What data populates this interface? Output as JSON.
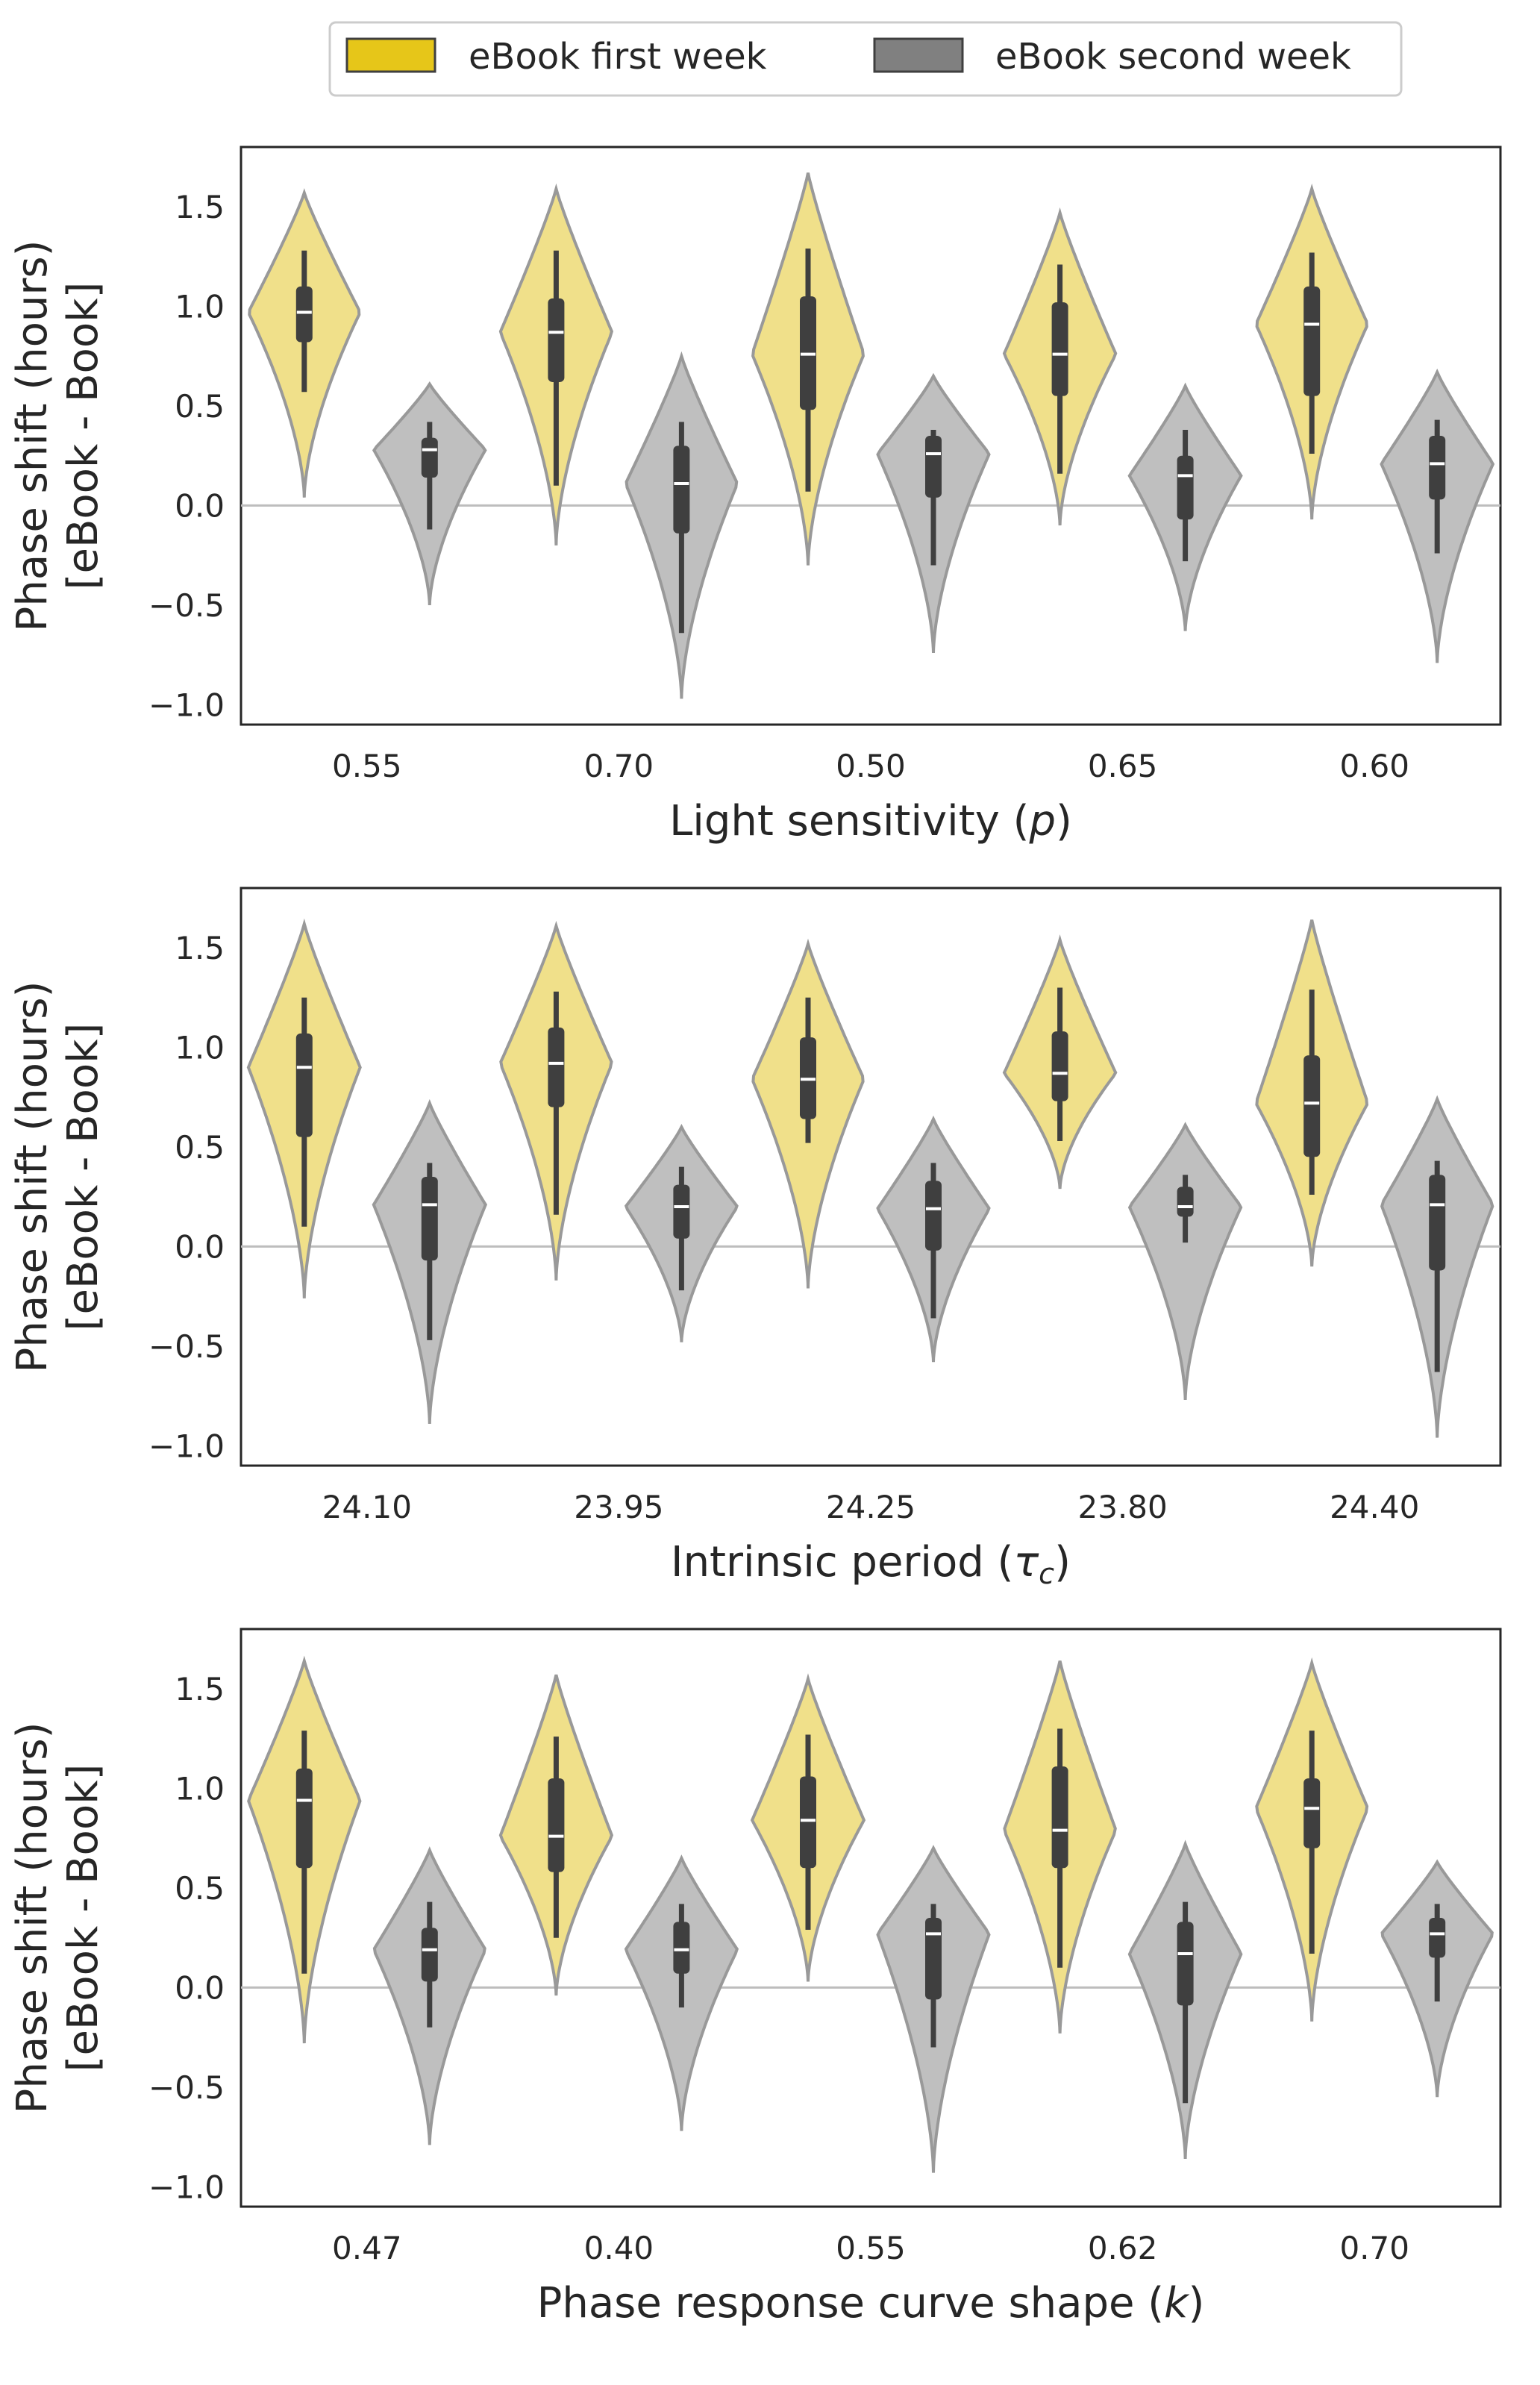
{
  "legend": {
    "items": [
      {
        "label": "eBook first week",
        "color": "#e6c619"
      },
      {
        "label": "eBook second week",
        "color": "#808080"
      }
    ],
    "placement": "top-center"
  },
  "chart_data": [
    {
      "type": "violin",
      "xlabel": "Light sensitivity (p)",
      "ylabel": [
        "Phase shift (hours)",
        "[eBook - Book]"
      ],
      "ylim": [
        -1.1,
        1.8
      ],
      "yticks": [
        -1.0,
        -0.5,
        0.0,
        0.5,
        1.0,
        1.5
      ],
      "ytick_labels": [
        "−1.0",
        "−0.5",
        "0.0",
        "0.5",
        "1.0",
        "1.5"
      ],
      "reference_line": 0.0,
      "categories": [
        "0.55",
        "0.70",
        "0.50",
        "0.65",
        "0.60"
      ],
      "series": [
        {
          "name": "eBook first week",
          "color": "#f0e08a",
          "min": [
            0.04,
            -0.2,
            -0.3,
            -0.1,
            -0.07
          ],
          "max": [
            1.57,
            1.59,
            1.67,
            1.47,
            1.59
          ],
          "q1": [
            0.82,
            0.62,
            0.48,
            0.55,
            0.55
          ],
          "median": [
            0.97,
            0.87,
            0.76,
            0.76,
            0.91
          ],
          "q3": [
            1.1,
            1.04,
            1.05,
            1.02,
            1.1
          ],
          "whisker_low": [
            0.57,
            0.1,
            0.07,
            0.16,
            0.26
          ],
          "whisker_high": [
            1.28,
            1.28,
            1.29,
            1.21,
            1.27
          ]
        },
        {
          "name": "eBook second week",
          "color": "#bfbfbf",
          "min": [
            -0.5,
            -0.97,
            -0.74,
            -0.63,
            -0.79
          ],
          "max": [
            0.61,
            0.75,
            0.65,
            0.6,
            0.67
          ],
          "q1": [
            0.14,
            -0.14,
            0.04,
            -0.07,
            0.03
          ],
          "median": [
            0.28,
            0.11,
            0.26,
            0.15,
            0.21
          ],
          "q3": [
            0.34,
            0.3,
            0.35,
            0.25,
            0.35
          ],
          "whisker_low": [
            -0.12,
            -0.64,
            -0.3,
            -0.28,
            -0.24
          ],
          "whisker_high": [
            0.42,
            0.42,
            0.38,
            0.38,
            0.43
          ]
        }
      ]
    },
    {
      "type": "violin",
      "xlabel": "Intrinsic period (τc)",
      "ylabel": [
        "Phase shift (hours)",
        "[eBook - Book]"
      ],
      "ylim": [
        -1.1,
        1.8
      ],
      "yticks": [
        -1.0,
        -0.5,
        0.0,
        0.5,
        1.0,
        1.5
      ],
      "ytick_labels": [
        "−1.0",
        "−0.5",
        "0.0",
        "0.5",
        "1.0",
        "1.5"
      ],
      "reference_line": 0.0,
      "categories": [
        "24.10",
        "23.95",
        "24.25",
        "23.80",
        "24.40"
      ],
      "series": [
        {
          "name": "eBook first week",
          "color": "#f0e08a",
          "min": [
            -0.26,
            -0.17,
            -0.21,
            0.29,
            -0.1
          ],
          "max": [
            1.62,
            1.61,
            1.52,
            1.54,
            1.64
          ],
          "q1": [
            0.55,
            0.7,
            0.64,
            0.73,
            0.45
          ],
          "median": [
            0.9,
            0.92,
            0.84,
            0.87,
            0.72
          ],
          "q3": [
            1.07,
            1.1,
            1.05,
            1.08,
            0.96
          ],
          "whisker_low": [
            0.1,
            0.16,
            0.52,
            0.53,
            0.26
          ],
          "whisker_high": [
            1.25,
            1.28,
            1.25,
            1.3,
            1.29
          ]
        },
        {
          "name": "eBook second week",
          "color": "#bfbfbf",
          "min": [
            -0.89,
            -0.48,
            -0.58,
            -0.77,
            -0.96
          ],
          "max": [
            0.72,
            0.6,
            0.64,
            0.61,
            0.74
          ],
          "q1": [
            -0.07,
            0.04,
            -0.02,
            0.15,
            -0.12
          ],
          "median": [
            0.21,
            0.2,
            0.19,
            0.2,
            0.21
          ],
          "q3": [
            0.35,
            0.31,
            0.33,
            0.3,
            0.36
          ],
          "whisker_low": [
            -0.47,
            -0.22,
            -0.36,
            0.02,
            -0.63
          ],
          "whisker_high": [
            0.42,
            0.4,
            0.42,
            0.36,
            0.43
          ]
        }
      ]
    },
    {
      "type": "violin",
      "xlabel": "Phase response curve shape (k)",
      "ylabel": [
        "Phase shift (hours)",
        "[eBook - Book]"
      ],
      "ylim": [
        -1.1,
        1.8
      ],
      "yticks": [
        -1.0,
        -0.5,
        0.0,
        0.5,
        1.0,
        1.5
      ],
      "ytick_labels": [
        "−1.0",
        "−0.5",
        "0.0",
        "0.5",
        "1.0",
        "1.5"
      ],
      "reference_line": 0.0,
      "categories": [
        "0.47",
        "0.40",
        "0.55",
        "0.62",
        "0.70"
      ],
      "series": [
        {
          "name": "eBook first week",
          "color": "#f0e08a",
          "min": [
            -0.28,
            -0.04,
            0.03,
            -0.23,
            -0.17
          ],
          "max": [
            1.64,
            1.57,
            1.55,
            1.64,
            1.63
          ],
          "q1": [
            0.6,
            0.58,
            0.6,
            0.6,
            0.7
          ],
          "median": [
            0.94,
            0.76,
            0.84,
            0.79,
            0.9
          ],
          "q3": [
            1.1,
            1.05,
            1.06,
            1.11,
            1.05
          ],
          "whisker_low": [
            0.07,
            0.25,
            0.29,
            0.1,
            0.17
          ],
          "whisker_high": [
            1.29,
            1.26,
            1.27,
            1.3,
            1.29
          ]
        },
        {
          "name": "eBook second week",
          "color": "#bfbfbf",
          "min": [
            -0.79,
            -0.72,
            -0.93,
            -0.86,
            -0.55
          ],
          "max": [
            0.69,
            0.65,
            0.7,
            0.72,
            0.63
          ],
          "q1": [
            0.03,
            0.07,
            -0.06,
            -0.09,
            0.15
          ],
          "median": [
            0.19,
            0.19,
            0.27,
            0.17,
            0.27
          ],
          "q3": [
            0.3,
            0.33,
            0.35,
            0.33,
            0.35
          ],
          "whisker_low": [
            -0.2,
            -0.1,
            -0.3,
            -0.58,
            -0.07
          ],
          "whisker_high": [
            0.43,
            0.42,
            0.42,
            0.43,
            0.42
          ]
        }
      ]
    }
  ]
}
